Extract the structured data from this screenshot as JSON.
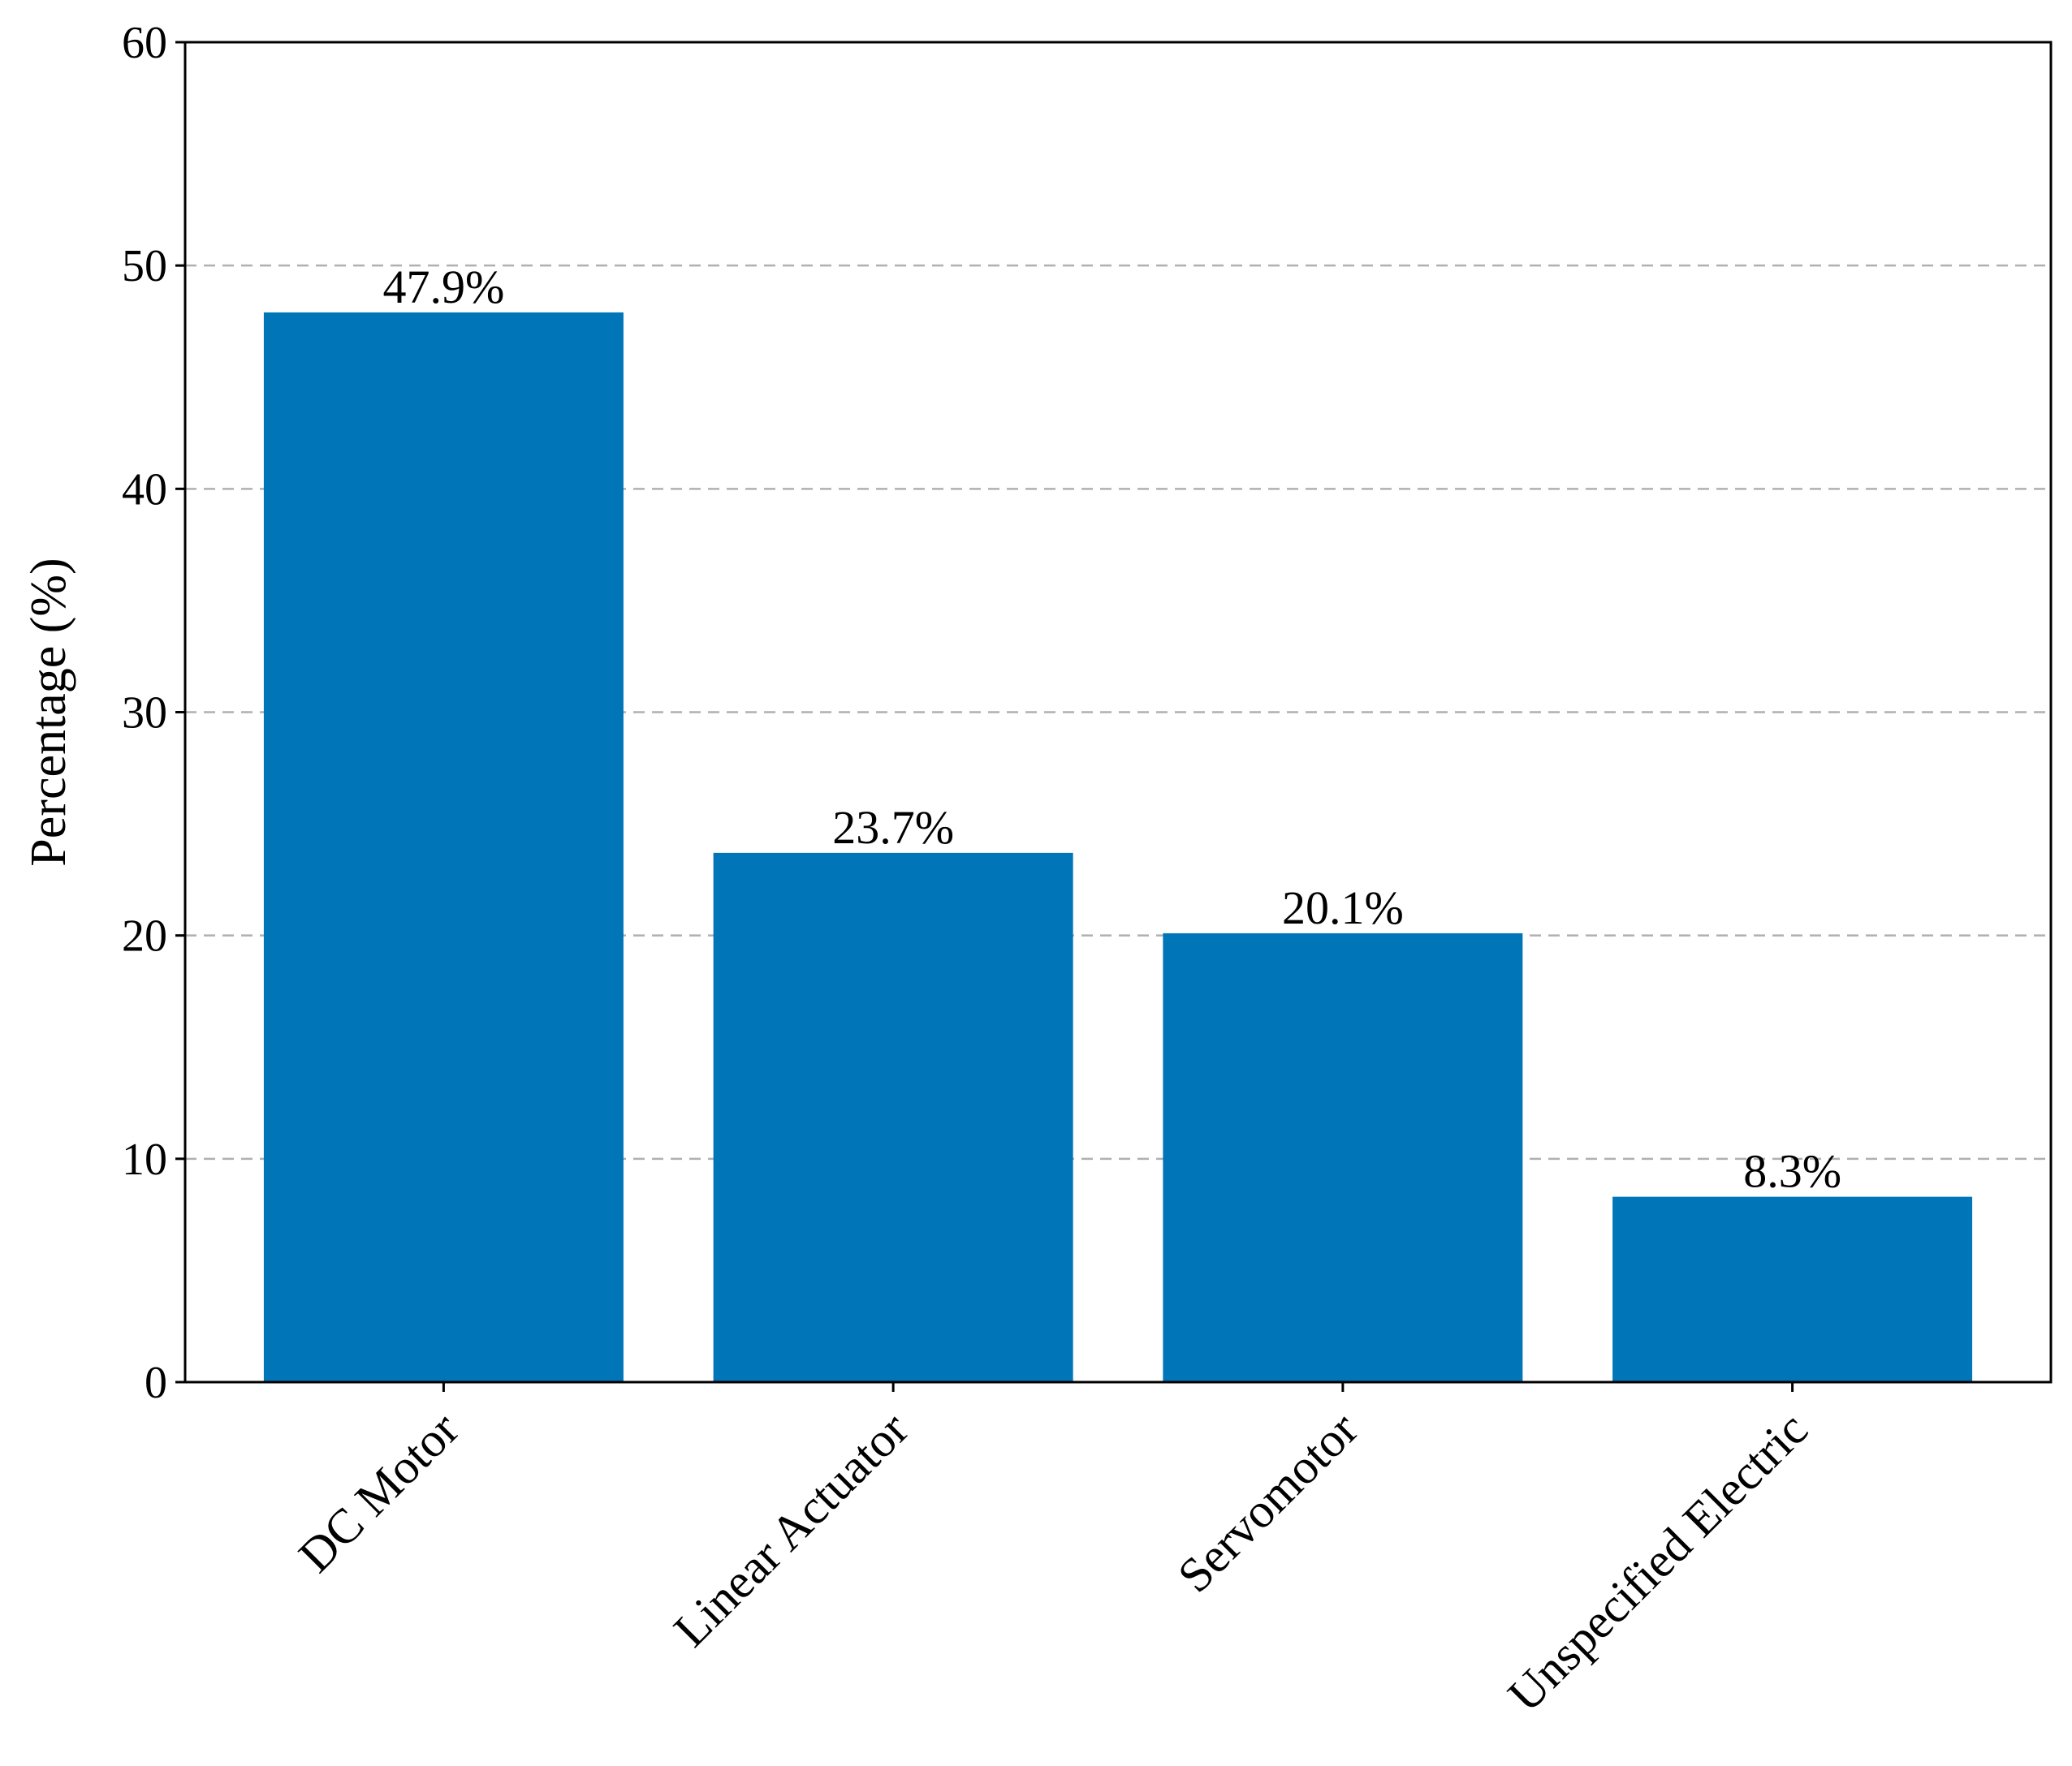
{
  "chart_data": {
    "type": "bar",
    "categories": [
      "DC Motor",
      "Linear Actuator",
      "Servomotor",
      "Unspecified Electric"
    ],
    "values": [
      47.9,
      23.7,
      20.1,
      8.3
    ],
    "data_labels": [
      "47.9%",
      "23.7%",
      "20.1%",
      "8.3%"
    ],
    "title": "",
    "xlabel": "",
    "ylabel": "Percentage (%)",
    "ylim": [
      0,
      60
    ],
    "yticks": [
      0,
      10,
      20,
      30,
      40,
      50,
      60
    ],
    "grid": "y-dashed",
    "legend": "none",
    "bar_color": "#0075b8"
  }
}
